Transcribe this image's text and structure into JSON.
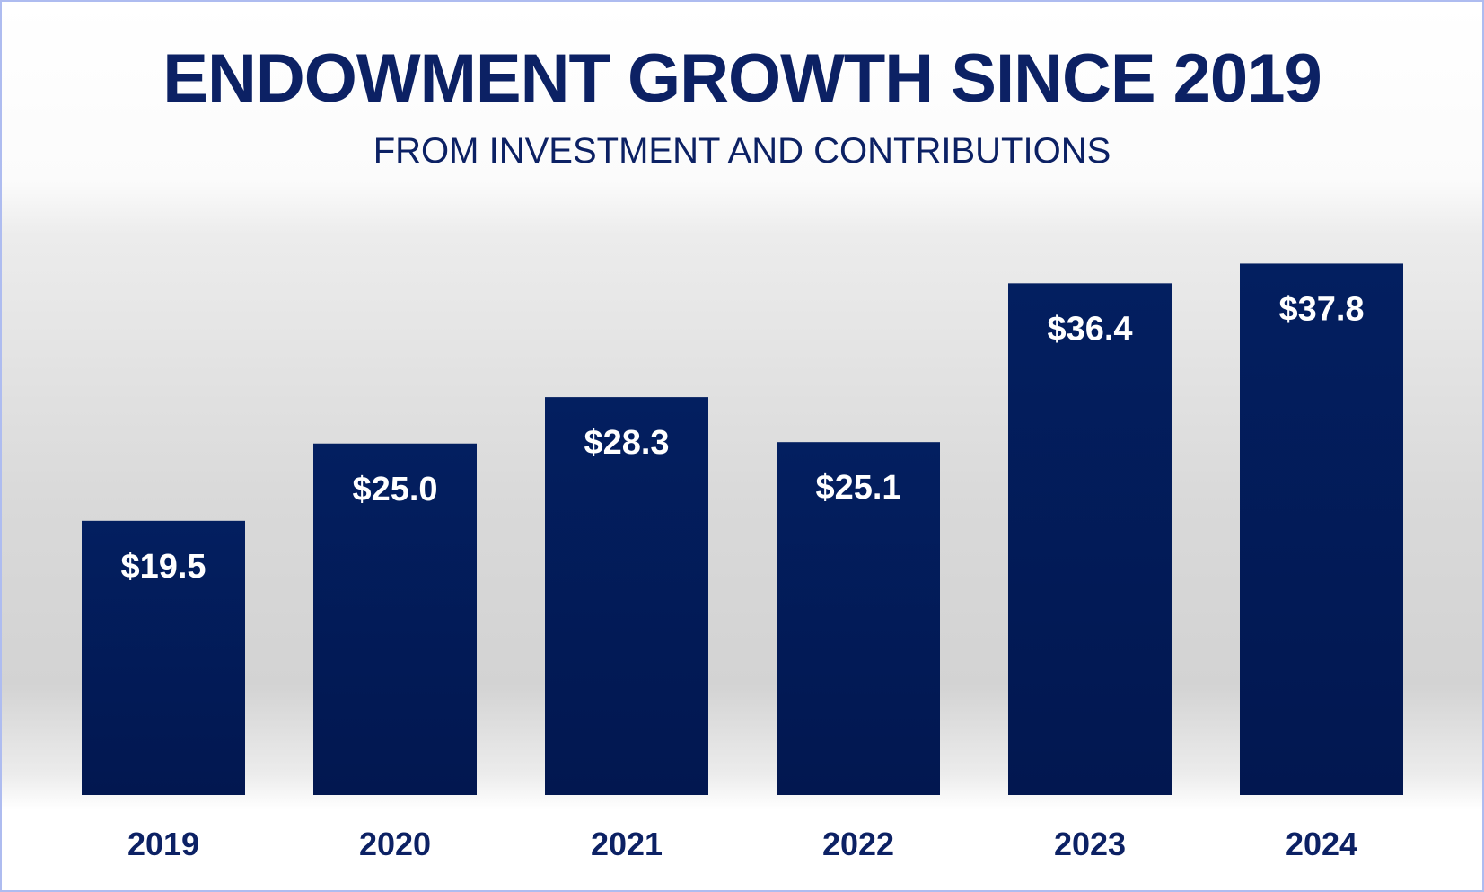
{
  "chart_data": {
    "type": "bar",
    "title": "ENDOWMENT GROWTH SINCE 2019",
    "subtitle": "FROM INVESTMENT AND CONTRIBUTIONS",
    "categories": [
      "2019",
      "2020",
      "2021",
      "2022",
      "2023",
      "2024"
    ],
    "values": [
      19.5,
      25.0,
      28.3,
      25.1,
      36.4,
      37.8
    ],
    "value_labels": [
      "$19.5",
      "$25.0",
      "$28.3",
      "$25.1",
      "$36.4",
      "$37.8"
    ],
    "xlabel": "",
    "ylabel": "",
    "ylim": [
      0,
      40
    ],
    "grid": false,
    "legend": "none",
    "bar_color": "#031c5a",
    "label_color": "#ffffff",
    "text_color": "#0c2164"
  }
}
